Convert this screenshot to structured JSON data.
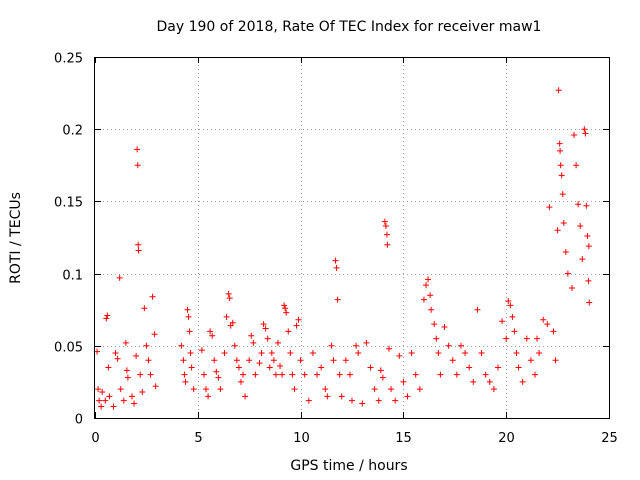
{
  "chart_data": {
    "type": "scatter",
    "title": "Day 190 of 2018, Rate Of TEC Index for receiver maw1",
    "xlabel": "GPS time / hours",
    "ylabel": "ROTI / TECUs",
    "xlim": [
      0,
      25
    ],
    "ylim": [
      0,
      0.25
    ],
    "xticks": [
      0,
      5,
      10,
      15,
      20,
      25
    ],
    "yticks": [
      0,
      0.05,
      0.1,
      0.15,
      0.2,
      0.25
    ],
    "xtick_labels": [
      "0",
      "5",
      "10",
      "15",
      "20",
      "25"
    ],
    "ytick_labels": [
      "0",
      "0.05",
      "0.1",
      "0.15",
      "0.2",
      "0.25"
    ],
    "grid": true,
    "marker": "+",
    "color": "#ff0000",
    "series": [
      {
        "name": "ROTI",
        "points": [
          [
            0.1,
            0.046
          ],
          [
            0.15,
            0.02
          ],
          [
            0.2,
            0.012
          ],
          [
            0.3,
            0.008
          ],
          [
            0.35,
            0.018
          ],
          [
            0.5,
            0.012
          ],
          [
            0.55,
            0.069
          ],
          [
            0.6,
            0.071
          ],
          [
            0.65,
            0.035
          ],
          [
            0.7,
            0.015
          ],
          [
            0.9,
            0.008
          ],
          [
            1.0,
            0.045
          ],
          [
            1.1,
            0.041
          ],
          [
            1.2,
            0.097
          ],
          [
            1.25,
            0.02
          ],
          [
            1.4,
            0.012
          ],
          [
            1.5,
            0.052
          ],
          [
            1.55,
            0.033
          ],
          [
            1.6,
            0.028
          ],
          [
            1.8,
            0.015
          ],
          [
            1.9,
            0.01
          ],
          [
            2.0,
            0.043
          ],
          [
            2.05,
            0.186
          ],
          [
            2.08,
            0.175
          ],
          [
            2.1,
            0.12
          ],
          [
            2.12,
            0.116
          ],
          [
            2.2,
            0.03
          ],
          [
            2.3,
            0.018
          ],
          [
            2.4,
            0.076
          ],
          [
            2.5,
            0.05
          ],
          [
            2.6,
            0.04
          ],
          [
            2.7,
            0.03
          ],
          [
            2.8,
            0.084
          ],
          [
            2.9,
            0.058
          ],
          [
            2.95,
            0.022
          ],
          [
            4.2,
            0.05
          ],
          [
            4.3,
            0.04
          ],
          [
            4.35,
            0.03
          ],
          [
            4.4,
            0.025
          ],
          [
            4.5,
            0.075
          ],
          [
            4.55,
            0.07
          ],
          [
            4.6,
            0.06
          ],
          [
            4.65,
            0.045
          ],
          [
            4.7,
            0.035
          ],
          [
            4.8,
            0.02
          ],
          [
            5.2,
            0.047
          ],
          [
            5.3,
            0.03
          ],
          [
            5.4,
            0.02
          ],
          [
            5.5,
            0.015
          ],
          [
            5.6,
            0.06
          ],
          [
            5.7,
            0.057
          ],
          [
            5.8,
            0.04
          ],
          [
            5.9,
            0.032
          ],
          [
            6.0,
            0.028
          ],
          [
            6.1,
            0.02
          ],
          [
            6.3,
            0.045
          ],
          [
            6.4,
            0.07
          ],
          [
            6.5,
            0.086
          ],
          [
            6.55,
            0.083
          ],
          [
            6.6,
            0.064
          ],
          [
            6.7,
            0.066
          ],
          [
            6.8,
            0.05
          ],
          [
            6.9,
            0.04
          ],
          [
            7.0,
            0.035
          ],
          [
            7.1,
            0.025
          ],
          [
            7.2,
            0.03
          ],
          [
            7.3,
            0.015
          ],
          [
            7.5,
            0.04
          ],
          [
            7.6,
            0.057
          ],
          [
            7.7,
            0.052
          ],
          [
            7.8,
            0.03
          ],
          [
            8.0,
            0.038
          ],
          [
            8.1,
            0.045
          ],
          [
            8.2,
            0.065
          ],
          [
            8.3,
            0.062
          ],
          [
            8.4,
            0.055
          ],
          [
            8.5,
            0.035
          ],
          [
            8.6,
            0.045
          ],
          [
            8.7,
            0.04
          ],
          [
            8.8,
            0.03
          ],
          [
            8.9,
            0.052
          ],
          [
            9.0,
            0.036
          ],
          [
            9.1,
            0.03
          ],
          [
            9.2,
            0.078
          ],
          [
            9.25,
            0.076
          ],
          [
            9.3,
            0.073
          ],
          [
            9.4,
            0.06
          ],
          [
            9.5,
            0.045
          ],
          [
            9.6,
            0.03
          ],
          [
            9.7,
            0.02
          ],
          [
            9.8,
            0.064
          ],
          [
            9.9,
            0.068
          ],
          [
            10.0,
            0.04
          ],
          [
            10.2,
            0.03
          ],
          [
            10.4,
            0.012
          ],
          [
            10.6,
            0.045
          ],
          [
            10.8,
            0.03
          ],
          [
            11.0,
            0.035
          ],
          [
            11.2,
            0.02
          ],
          [
            11.3,
            0.015
          ],
          [
            11.5,
            0.05
          ],
          [
            11.6,
            0.04
          ],
          [
            11.7,
            0.109
          ],
          [
            11.75,
            0.104
          ],
          [
            11.8,
            0.082
          ],
          [
            11.9,
            0.03
          ],
          [
            12.0,
            0.015
          ],
          [
            12.2,
            0.04
          ],
          [
            12.4,
            0.03
          ],
          [
            12.5,
            0.012
          ],
          [
            12.7,
            0.05
          ],
          [
            12.8,
            0.045
          ],
          [
            13.0,
            0.01
          ],
          [
            13.2,
            0.052
          ],
          [
            13.4,
            0.035
          ],
          [
            13.6,
            0.02
          ],
          [
            13.8,
            0.012
          ],
          [
            13.9,
            0.033
          ],
          [
            14.0,
            0.028
          ],
          [
            14.1,
            0.136
          ],
          [
            14.15,
            0.133
          ],
          [
            14.2,
            0.127
          ],
          [
            14.22,
            0.12
          ],
          [
            14.3,
            0.048
          ],
          [
            14.4,
            0.02
          ],
          [
            14.6,
            0.012
          ],
          [
            14.8,
            0.043
          ],
          [
            15.0,
            0.025
          ],
          [
            15.2,
            0.015
          ],
          [
            15.4,
            0.045
          ],
          [
            15.6,
            0.03
          ],
          [
            15.8,
            0.02
          ],
          [
            16.0,
            0.082
          ],
          [
            16.1,
            0.092
          ],
          [
            16.2,
            0.096
          ],
          [
            16.3,
            0.085
          ],
          [
            16.35,
            0.075
          ],
          [
            16.5,
            0.065
          ],
          [
            16.6,
            0.055
          ],
          [
            16.7,
            0.045
          ],
          [
            16.8,
            0.03
          ],
          [
            17.0,
            0.063
          ],
          [
            17.2,
            0.05
          ],
          [
            17.4,
            0.04
          ],
          [
            17.6,
            0.03
          ],
          [
            17.8,
            0.05
          ],
          [
            18.0,
            0.045
          ],
          [
            18.2,
            0.035
          ],
          [
            18.4,
            0.025
          ],
          [
            18.6,
            0.075
          ],
          [
            18.8,
            0.045
          ],
          [
            19.0,
            0.03
          ],
          [
            19.2,
            0.025
          ],
          [
            19.4,
            0.02
          ],
          [
            19.6,
            0.035
          ],
          [
            19.8,
            0.067
          ],
          [
            20.0,
            0.055
          ],
          [
            20.1,
            0.081
          ],
          [
            20.2,
            0.078
          ],
          [
            20.3,
            0.07
          ],
          [
            20.4,
            0.06
          ],
          [
            20.5,
            0.045
          ],
          [
            20.6,
            0.035
          ],
          [
            20.8,
            0.025
          ],
          [
            21.0,
            0.055
          ],
          [
            21.2,
            0.04
          ],
          [
            21.4,
            0.03
          ],
          [
            21.5,
            0.055
          ],
          [
            21.6,
            0.045
          ],
          [
            21.8,
            0.068
          ],
          [
            22.0,
            0.065
          ],
          [
            22.1,
            0.146
          ],
          [
            22.3,
            0.06
          ],
          [
            22.4,
            0.04
          ],
          [
            22.5,
            0.13
          ],
          [
            22.55,
            0.227
          ],
          [
            22.6,
            0.19
          ],
          [
            22.62,
            0.185
          ],
          [
            22.65,
            0.175
          ],
          [
            22.7,
            0.168
          ],
          [
            22.75,
            0.155
          ],
          [
            22.8,
            0.135
          ],
          [
            22.9,
            0.115
          ],
          [
            23.0,
            0.1
          ],
          [
            23.2,
            0.09
          ],
          [
            23.3,
            0.196
          ],
          [
            23.4,
            0.175
          ],
          [
            23.5,
            0.148
          ],
          [
            23.6,
            0.133
          ],
          [
            23.7,
            0.11
          ],
          [
            23.8,
            0.2
          ],
          [
            23.85,
            0.197
          ],
          [
            23.9,
            0.147
          ],
          [
            23.95,
            0.126
          ],
          [
            24.0,
            0.095
          ],
          [
            24.02,
            0.119
          ],
          [
            24.04,
            0.08
          ]
        ]
      }
    ]
  }
}
